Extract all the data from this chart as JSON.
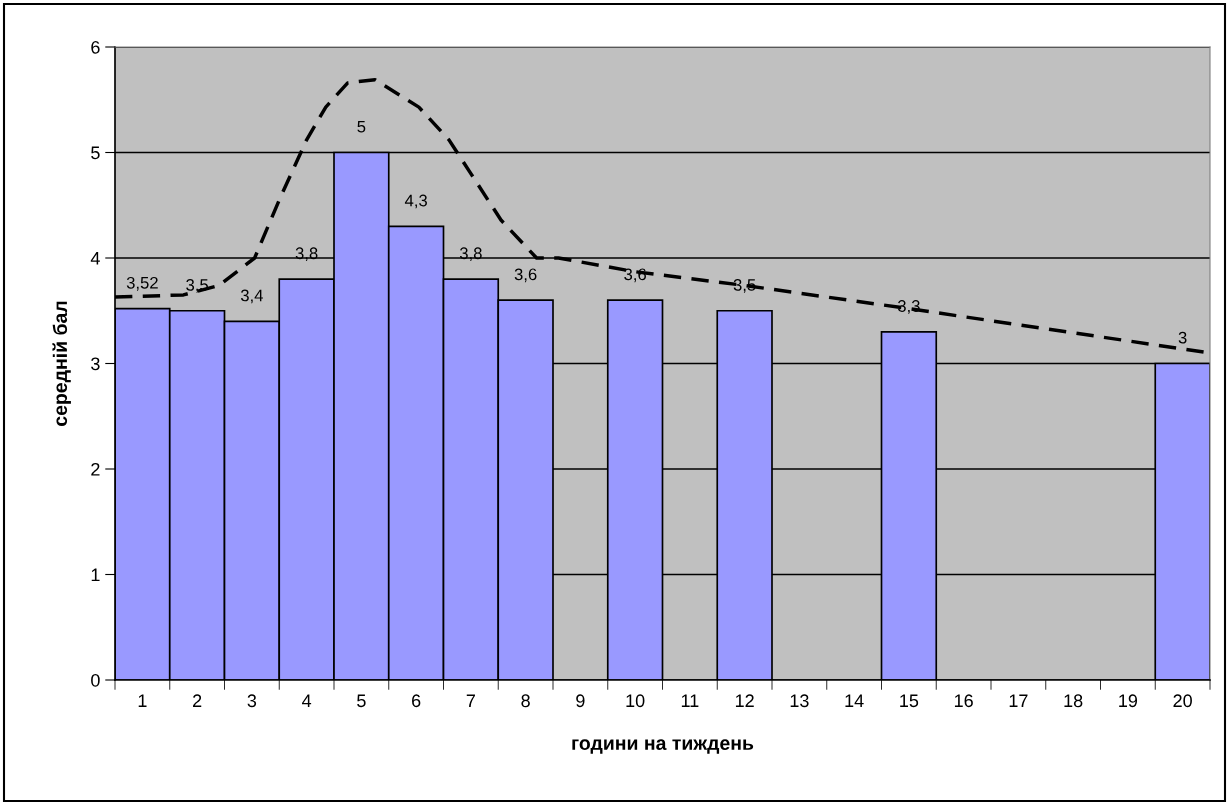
{
  "chart_data": {
    "type": "bar",
    "xlabel": "години на тиждень",
    "ylabel": "середній бал",
    "xlim": [
      0.5,
      20.5
    ],
    "xticks": [
      1,
      2,
      3,
      4,
      5,
      6,
      7,
      8,
      9,
      10,
      11,
      12,
      13,
      14,
      15,
      16,
      17,
      18,
      19,
      20
    ],
    "ylim": [
      0,
      6
    ],
    "yticks": [
      0,
      1,
      2,
      3,
      4,
      5,
      6
    ],
    "grid": "y",
    "series": [
      {
        "color": "#9999ff",
        "x": [
          1,
          2,
          3,
          4,
          5,
          6,
          7,
          8,
          10,
          12,
          15,
          20
        ],
        "values": [
          3.52,
          3.5,
          3.4,
          3.8,
          5,
          4.3,
          3.8,
          3.6,
          3.6,
          3.5,
          3.3,
          3
        ],
        "value_labels": [
          "3,52",
          "3,5",
          "3,4",
          "3,8",
          "5",
          "4,3",
          "3,8",
          "3,6",
          "3,6",
          "3,5",
          "3,3",
          "3"
        ]
      },
      {
        "type": "line",
        "color": "#000000",
        "line_style": "dashed",
        "marker": "none",
        "x": [
          0.5,
          1.75,
          2.4,
          3.05,
          3.5,
          4,
          4.35,
          4.75,
          5.25,
          6.05,
          6.6,
          7,
          7.55,
          8.2,
          8.6,
          10,
          12,
          15,
          20.5
        ],
        "values": [
          3.63,
          3.65,
          3.74,
          4.0,
          4.55,
          5.12,
          5.43,
          5.66,
          5.69,
          5.43,
          5.12,
          4.8,
          4.36,
          4.0,
          4.0,
          3.87,
          3.74,
          3.52,
          3.1
        ]
      }
    ]
  }
}
